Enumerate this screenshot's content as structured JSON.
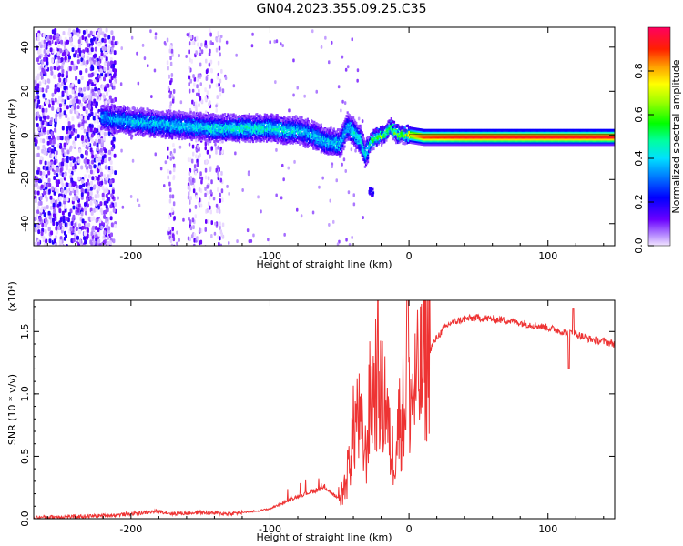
{
  "title": "GN04.2023.355.09.25.C35",
  "chart_data": [
    {
      "type": "heatmap",
      "xlabel": "Height of straight line (km)",
      "ylabel": "Frequency (Hz)",
      "xlim": [
        -270,
        148
      ],
      "ylim": [
        -50,
        49
      ],
      "x_ticks": [
        -200,
        -100,
        0,
        100
      ],
      "y_ticks": [
        -40,
        -20,
        0,
        20,
        40
      ],
      "colorbar": {
        "label": "Normalized spectral amplitude",
        "range": [
          0,
          1
        ],
        "ticks": [
          0.0,
          0.2,
          0.4,
          0.6,
          0.8
        ]
      },
      "ridge": {
        "x": [
          -222,
          -200,
          -180,
          -160,
          -140,
          -120,
          -100,
          -90,
          -80,
          -70,
          -60,
          -50,
          -45,
          -40,
          -35,
          -32,
          -28,
          -24,
          -18,
          -14,
          -12,
          -8,
          -4,
          0,
          10,
          40,
          80,
          120,
          148
        ],
        "frequency": [
          9,
          7,
          6,
          5,
          4,
          4,
          4,
          3,
          3,
          1,
          -2,
          -3,
          5,
          2,
          -2,
          -8,
          -2,
          0,
          1,
          5,
          3,
          1,
          1,
          1,
          0,
          0,
          0,
          0,
          0
        ],
        "amplitude": [
          0.35,
          0.4,
          0.4,
          0.4,
          0.45,
          0.45,
          0.45,
          0.45,
          0.4,
          0.4,
          0.4,
          0.4,
          0.4,
          0.45,
          0.45,
          0.4,
          0.55,
          0.6,
          0.65,
          0.55,
          0.6,
          0.65,
          0.7,
          0.75,
          0.9,
          0.95,
          0.95,
          0.95,
          0.95
        ]
      }
    },
    {
      "type": "line",
      "xlabel": "Height of straight line (km)",
      "ylabel": "SNR (10 * v/v)",
      "y_multiplier": "(x10⁴)",
      "xlim": [
        -270,
        148
      ],
      "ylim": [
        0,
        1.75
      ],
      "x_ticks": [
        -200,
        -100,
        0,
        100
      ],
      "y_ticks": [
        0.0,
        0.5,
        1.0,
        1.5
      ],
      "color": "#ee3333",
      "series": [
        {
          "x": [
            -270,
            -250,
            -230,
            -210,
            -190,
            -180,
            -170,
            -150,
            -130,
            -110,
            -100,
            -90,
            -80,
            -70,
            -60,
            -55,
            -50,
            -45,
            -42,
            -40,
            -37,
            -34,
            -31,
            -28,
            -25,
            -22,
            -20,
            -17,
            -14,
            -11,
            -8,
            -5,
            -2,
            0,
            5,
            10,
            15,
            20,
            25,
            30,
            40,
            50,
            60,
            70,
            80,
            90,
            100,
            110,
            115,
            117,
            120,
            125,
            130,
            140,
            148
          ],
          "y": [
            0.01,
            0.015,
            0.02,
            0.03,
            0.05,
            0.06,
            0.04,
            0.05,
            0.04,
            0.06,
            0.08,
            0.13,
            0.18,
            0.22,
            0.25,
            0.2,
            0.15,
            0.3,
            0.55,
            0.7,
            0.85,
            0.65,
            0.5,
            0.95,
            1.05,
            1.2,
            0.9,
            1.0,
            0.6,
            0.5,
            0.75,
            0.85,
            1.0,
            0.95,
            1.05,
            1.2,
            1.35,
            1.45,
            1.52,
            1.57,
            1.6,
            1.61,
            1.6,
            1.59,
            1.57,
            1.55,
            1.53,
            1.5,
            1.48,
            1.5,
            1.48,
            1.46,
            1.44,
            1.42,
            1.4
          ]
        }
      ]
    }
  ]
}
